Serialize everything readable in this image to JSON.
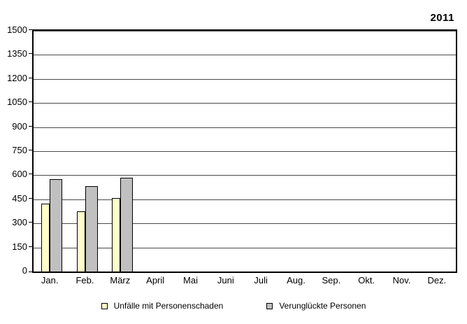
{
  "chart_data": {
    "type": "bar",
    "title": "2011",
    "categories": [
      "Jan.",
      "Feb.",
      "März",
      "April",
      "Mai",
      "Juni",
      "Juli",
      "Aug.",
      "Sep.",
      "Okt.",
      "Nov.",
      "Dez."
    ],
    "series": [
      {
        "name": "Unfälle mit Personenschaden",
        "color": "#ffffcc",
        "border_color": "#000000",
        "values": [
          425,
          375,
          460,
          null,
          null,
          null,
          null,
          null,
          null,
          null,
          null,
          null
        ]
      },
      {
        "name": "Verunglückte Personen",
        "color": "#c0c0c0",
        "border_color": "#000000",
        "values": [
          575,
          530,
          585,
          null,
          null,
          null,
          null,
          null,
          null,
          null,
          null,
          null
        ]
      }
    ],
    "ylim": [
      0,
      1500
    ],
    "ytick_step": 150,
    "grid": true,
    "legend_position": "bottom",
    "axis_color": "#000000",
    "grid_color": "#4a4a4a",
    "background": "#ffffff"
  }
}
